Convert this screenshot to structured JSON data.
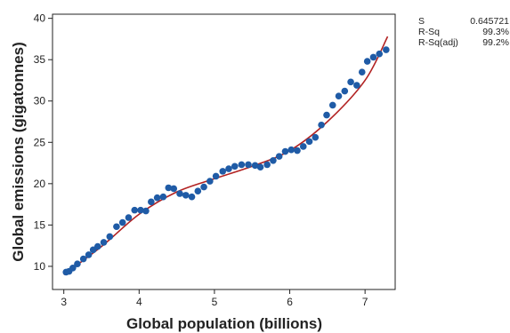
{
  "chart_data": {
    "type": "scatter",
    "xlabel": "Global population (billions)",
    "ylabel": "Global emissions (gigatonnes)",
    "xlim": [
      2.85,
      7.4
    ],
    "ylim": [
      7.2,
      40.5
    ],
    "x_ticks": [
      3,
      4,
      5,
      6,
      7
    ],
    "y_ticks": [
      10,
      15,
      20,
      25,
      30,
      35,
      40
    ],
    "grid": false,
    "colors": {
      "points": "#1f5ba6",
      "fit_line": "#b22222"
    },
    "points": [
      {
        "x": 3.03,
        "y": 9.3
      },
      {
        "x": 3.07,
        "y": 9.4
      },
      {
        "x": 3.12,
        "y": 9.8
      },
      {
        "x": 3.18,
        "y": 10.3
      },
      {
        "x": 3.26,
        "y": 10.9
      },
      {
        "x": 3.33,
        "y": 11.4
      },
      {
        "x": 3.39,
        "y": 12.0
      },
      {
        "x": 3.45,
        "y": 12.4
      },
      {
        "x": 3.53,
        "y": 12.9
      },
      {
        "x": 3.61,
        "y": 13.6
      },
      {
        "x": 3.7,
        "y": 14.8
      },
      {
        "x": 3.78,
        "y": 15.3
      },
      {
        "x": 3.86,
        "y": 15.9
      },
      {
        "x": 3.94,
        "y": 16.8
      },
      {
        "x": 4.02,
        "y": 16.8
      },
      {
        "x": 4.09,
        "y": 16.7
      },
      {
        "x": 4.16,
        "y": 17.8
      },
      {
        "x": 4.24,
        "y": 18.3
      },
      {
        "x": 4.32,
        "y": 18.4
      },
      {
        "x": 4.39,
        "y": 19.5
      },
      {
        "x": 4.46,
        "y": 19.4
      },
      {
        "x": 4.54,
        "y": 18.8
      },
      {
        "x": 4.62,
        "y": 18.6
      },
      {
        "x": 4.7,
        "y": 18.4
      },
      {
        "x": 4.78,
        "y": 19.1
      },
      {
        "x": 4.86,
        "y": 19.6
      },
      {
        "x": 4.94,
        "y": 20.3
      },
      {
        "x": 5.02,
        "y": 20.9
      },
      {
        "x": 5.11,
        "y": 21.5
      },
      {
        "x": 5.19,
        "y": 21.8
      },
      {
        "x": 5.27,
        "y": 22.1
      },
      {
        "x": 5.36,
        "y": 22.3
      },
      {
        "x": 5.45,
        "y": 22.3
      },
      {
        "x": 5.54,
        "y": 22.2
      },
      {
        "x": 5.61,
        "y": 22.0
      },
      {
        "x": 5.7,
        "y": 22.3
      },
      {
        "x": 5.78,
        "y": 22.8
      },
      {
        "x": 5.86,
        "y": 23.3
      },
      {
        "x": 5.94,
        "y": 23.9
      },
      {
        "x": 6.02,
        "y": 24.1
      },
      {
        "x": 6.1,
        "y": 24.0
      },
      {
        "x": 6.18,
        "y": 24.5
      },
      {
        "x": 6.26,
        "y": 25.1
      },
      {
        "x": 6.34,
        "y": 25.6
      },
      {
        "x": 6.42,
        "y": 27.1
      },
      {
        "x": 6.49,
        "y": 28.3
      },
      {
        "x": 6.57,
        "y": 29.5
      },
      {
        "x": 6.65,
        "y": 30.6
      },
      {
        "x": 6.73,
        "y": 31.2
      },
      {
        "x": 6.81,
        "y": 32.3
      },
      {
        "x": 6.89,
        "y": 31.9
      },
      {
        "x": 6.96,
        "y": 33.5
      },
      {
        "x": 7.03,
        "y": 34.8
      },
      {
        "x": 7.11,
        "y": 35.3
      },
      {
        "x": 7.19,
        "y": 35.7
      },
      {
        "x": 7.28,
        "y": 36.2
      }
    ],
    "fit_line": [
      {
        "x": 3.0,
        "y": 9.0
      },
      {
        "x": 3.5,
        "y": 12.4
      },
      {
        "x": 4.0,
        "y": 16.3
      },
      {
        "x": 4.5,
        "y": 19.0
      },
      {
        "x": 5.0,
        "y": 20.6
      },
      {
        "x": 5.5,
        "y": 22.1
      },
      {
        "x": 6.0,
        "y": 24.0
      },
      {
        "x": 6.5,
        "y": 27.5
      },
      {
        "x": 7.0,
        "y": 32.5
      },
      {
        "x": 7.3,
        "y": 37.8
      }
    ]
  },
  "stats": [
    {
      "label": "S",
      "value": "0.645721"
    },
    {
      "label": "R-Sq",
      "value": "99.3%"
    },
    {
      "label": "R-Sq(adj)",
      "value": "99.2%"
    }
  ]
}
